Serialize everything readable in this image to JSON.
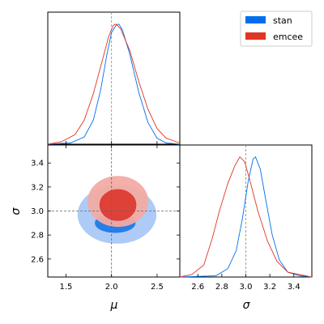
{
  "colors": {
    "stan": "#006fed",
    "emcee": "#e03424"
  },
  "chart_data": {
    "type": "corner",
    "truths": {
      "mu": 2.0,
      "sigma": 3.0
    },
    "legend": {
      "placement": "top-right",
      "entries": [
        {
          "label": "stan",
          "color": "#006fed"
        },
        {
          "label": "emcee",
          "color": "#e03424"
        }
      ]
    },
    "mu_marginal": {
      "xlim": [
        1.3,
        2.75
      ],
      "xticks": [
        "1.5",
        "2.0",
        "2.5"
      ],
      "xlabel": "μ",
      "series": [
        {
          "name": "stan",
          "points": [
            [
              1.3,
              0
            ],
            [
              1.55,
              0.01
            ],
            [
              1.7,
              0.06
            ],
            [
              1.8,
              0.2
            ],
            [
              1.88,
              0.45
            ],
            [
              1.95,
              0.75
            ],
            [
              2.0,
              0.93
            ],
            [
              2.05,
              0.99
            ],
            [
              2.08,
              1.0
            ],
            [
              2.12,
              0.95
            ],
            [
              2.2,
              0.75
            ],
            [
              2.3,
              0.43
            ],
            [
              2.4,
              0.18
            ],
            [
              2.5,
              0.05
            ],
            [
              2.6,
              0.01
            ],
            [
              2.75,
              0
            ]
          ]
        },
        {
          "name": "emcee",
          "points": [
            [
              1.3,
              0
            ],
            [
              1.45,
              0.02
            ],
            [
              1.6,
              0.08
            ],
            [
              1.7,
              0.2
            ],
            [
              1.8,
              0.42
            ],
            [
              1.9,
              0.7
            ],
            [
              1.97,
              0.9
            ],
            [
              2.02,
              0.99
            ],
            [
              2.05,
              1.0
            ],
            [
              2.1,
              0.96
            ],
            [
              2.2,
              0.78
            ],
            [
              2.3,
              0.52
            ],
            [
              2.4,
              0.29
            ],
            [
              2.5,
              0.13
            ],
            [
              2.6,
              0.05
            ],
            [
              2.75,
              0.01
            ]
          ]
        }
      ]
    },
    "sigma_marginal": {
      "xlim": [
        2.45,
        3.55
      ],
      "xticks": [
        "2.6",
        "2.8",
        "3.0",
        "3.2",
        "3.4"
      ],
      "xlabel": "σ",
      "series": [
        {
          "name": "stan",
          "points": [
            [
              2.45,
              0
            ],
            [
              2.75,
              0.01
            ],
            [
              2.85,
              0.07
            ],
            [
              2.92,
              0.22
            ],
            [
              2.97,
              0.48
            ],
            [
              3.02,
              0.8
            ],
            [
              3.06,
              0.98
            ],
            [
              3.08,
              1.0
            ],
            [
              3.12,
              0.9
            ],
            [
              3.17,
              0.62
            ],
            [
              3.22,
              0.35
            ],
            [
              3.28,
              0.14
            ],
            [
              3.35,
              0.04
            ],
            [
              3.45,
              0.01
            ],
            [
              3.55,
              0
            ]
          ]
        },
        {
          "name": "emcee",
          "points": [
            [
              2.45,
              0
            ],
            [
              2.55,
              0.02
            ],
            [
              2.65,
              0.1
            ],
            [
              2.72,
              0.32
            ],
            [
              2.78,
              0.55
            ],
            [
              2.85,
              0.78
            ],
            [
              2.91,
              0.93
            ],
            [
              2.95,
              1.0
            ],
            [
              2.99,
              0.96
            ],
            [
              3.03,
              0.82
            ],
            [
              3.1,
              0.55
            ],
            [
              3.18,
              0.3
            ],
            [
              3.26,
              0.13
            ],
            [
              3.35,
              0.04
            ],
            [
              3.5,
              0.01
            ],
            [
              3.55,
              0
            ]
          ]
        }
      ]
    },
    "joint": {
      "xlim": [
        1.3,
        2.75
      ],
      "ylim": [
        2.45,
        3.55
      ],
      "xticks": [
        "1.5",
        "2.0",
        "2.5"
      ],
      "yticks": [
        "2.6",
        "2.8",
        "3.0",
        "3.2",
        "3.4"
      ],
      "xlabel": "μ",
      "ylabel": "σ",
      "contours": [
        {
          "name": "stan",
          "level": "outer",
          "center": [
            2.06,
            2.97
          ],
          "radii": [
            0.43,
            0.24
          ],
          "color": "#a9c8f5"
        },
        {
          "name": "stan",
          "level": "inner",
          "center": [
            2.04,
            2.9
          ],
          "radii": [
            0.22,
            0.08
          ],
          "color": "#1f7ae8"
        },
        {
          "name": "emcee",
          "level": "outer",
          "center": [
            2.07,
            3.08
          ],
          "radii": [
            0.33,
            0.21
          ],
          "color": "#f2aba3"
        },
        {
          "name": "emcee",
          "level": "inner",
          "center": [
            2.07,
            3.05
          ],
          "radii": [
            0.2,
            0.13
          ],
          "color": "#dc3b31"
        }
      ]
    }
  }
}
